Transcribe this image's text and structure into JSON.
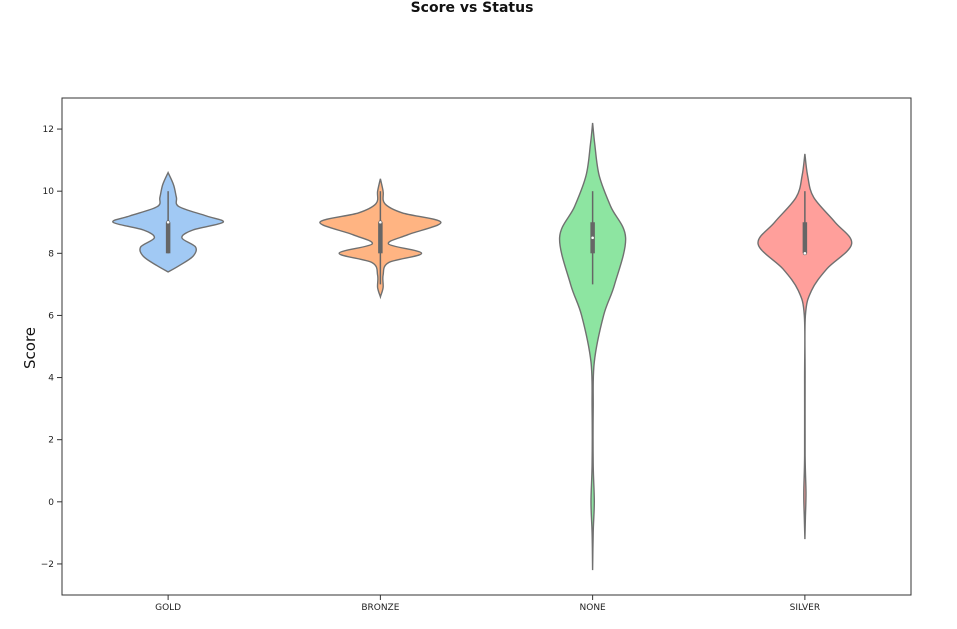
{
  "chart_data": {
    "type": "violin",
    "title": "Score vs Status",
    "xlabel": "",
    "ylabel": "Score",
    "categories": [
      "GOLD",
      "BRONZE",
      "NONE",
      "SILVER"
    ],
    "ylim": [
      -3,
      13
    ],
    "yticks": [
      -2,
      0,
      2,
      4,
      6,
      8,
      10,
      12
    ],
    "ytick_labels": [
      "−2",
      "0",
      "2",
      "4",
      "6",
      "8",
      "10",
      "12"
    ],
    "grid": false,
    "legend": "none",
    "colors": [
      "#a1c9f4",
      "#ffb482",
      "#8de5a1",
      "#ff9f9b"
    ],
    "violins": [
      {
        "category": "GOLD",
        "min": 7.4,
        "max": 10.6,
        "box": {
          "whisker_low": 8,
          "q1": 8,
          "median": 9,
          "q3": 9,
          "whisker_high": 10
        },
        "density": [
          [
            7.4,
            0
          ],
          [
            7.6,
            0.2
          ],
          [
            7.9,
            0.45
          ],
          [
            8.2,
            0.5
          ],
          [
            8.5,
            0.25
          ],
          [
            8.75,
            0.45
          ],
          [
            9.0,
            1.0
          ],
          [
            9.2,
            0.7
          ],
          [
            9.5,
            0.2
          ],
          [
            9.8,
            0.15
          ],
          [
            10.2,
            0.1
          ],
          [
            10.6,
            0
          ]
        ]
      },
      {
        "category": "BRONZE",
        "min": 6.6,
        "max": 10.4,
        "box": {
          "whisker_low": 7,
          "q1": 8,
          "median": 9,
          "q3": 9,
          "whisker_high": 10
        },
        "density": [
          [
            6.6,
            0
          ],
          [
            6.9,
            0.05
          ],
          [
            7.3,
            0.05
          ],
          [
            7.7,
            0.15
          ],
          [
            8.0,
            0.75
          ],
          [
            8.3,
            0.15
          ],
          [
            8.6,
            0.5
          ],
          [
            9.0,
            1.1
          ],
          [
            9.3,
            0.4
          ],
          [
            9.6,
            0.08
          ],
          [
            10.0,
            0.05
          ],
          [
            10.4,
            0
          ]
        ]
      },
      {
        "category": "NONE",
        "min": -2.2,
        "max": 12.2,
        "box": {
          "whisker_low": 7,
          "q1": 8,
          "median": 8.5,
          "q3": 9,
          "whisker_high": 10
        },
        "density": [
          [
            -2.2,
            0
          ],
          [
            -1.0,
            0.01
          ],
          [
            0.0,
            0.03
          ],
          [
            1.2,
            0.01
          ],
          [
            3.0,
            0.01
          ],
          [
            4.5,
            0.03
          ],
          [
            6.0,
            0.2
          ],
          [
            7.0,
            0.4
          ],
          [
            8.5,
            0.6
          ],
          [
            9.5,
            0.33
          ],
          [
            10.5,
            0.12
          ],
          [
            11.5,
            0.04
          ],
          [
            12.2,
            0
          ]
        ]
      },
      {
        "category": "SILVER",
        "min": -1.2,
        "max": 11.2,
        "box": {
          "whisker_low": 8,
          "q1": 8,
          "median": 8,
          "q3": 9,
          "whisker_high": 10
        },
        "density": [
          [
            -1.2,
            0
          ],
          [
            -0.5,
            0.01
          ],
          [
            0.3,
            0.02
          ],
          [
            1.5,
            0.005
          ],
          [
            4.0,
            0.005
          ],
          [
            6.0,
            0.01
          ],
          [
            6.8,
            0.12
          ],
          [
            7.5,
            0.4
          ],
          [
            8.3,
            0.85
          ],
          [
            9.0,
            0.55
          ],
          [
            9.8,
            0.16
          ],
          [
            10.5,
            0.05
          ],
          [
            11.2,
            0
          ]
        ]
      }
    ]
  }
}
